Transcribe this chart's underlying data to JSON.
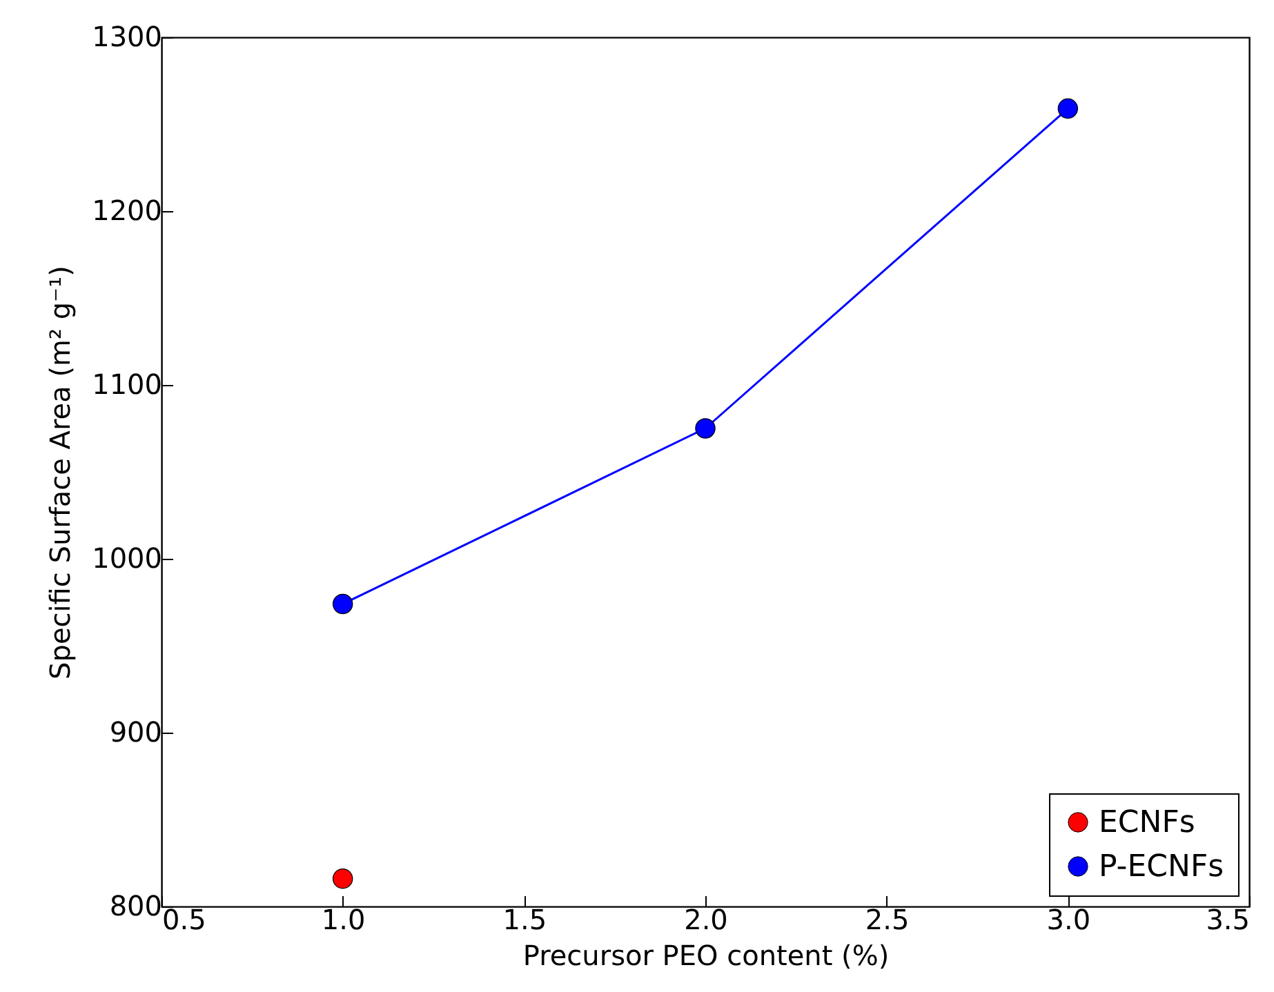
{
  "chart_data": {
    "type": "line",
    "xlabel": "Precursor PEO content (%)",
    "ylabel": "Specific Surface Area (m² g⁻¹)",
    "xlim": [
      0.5,
      3.5
    ],
    "xticks": [
      {
        "value": 0.5,
        "label": "0.5"
      },
      {
        "value": 1,
        "label": "1.0"
      },
      {
        "value": 1.5,
        "label": "1.5"
      },
      {
        "value": 2,
        "label": "2.0"
      },
      {
        "value": 2.5,
        "label": "2.5"
      },
      {
        "value": 3,
        "label": "3.0"
      },
      {
        "value": 3.5,
        "label": "3.5"
      }
    ],
    "ylim": [
      800,
      1300
    ],
    "yticks": [
      800,
      900,
      1000,
      1100,
      1200,
      1300
    ],
    "grid": false,
    "legend": "bottom right",
    "marker": "circle",
    "line_style": "solid",
    "series": [
      {
        "name": "ECNFs",
        "type": "scatter",
        "color": "#ff0000",
        "x": [
          1.0
        ],
        "values": [
          816
        ]
      },
      {
        "name": "P-ECNFs",
        "type": "line",
        "color": "#0000ff",
        "x": [
          1.0,
          2.0,
          3.0
        ],
        "values": [
          974,
          1075,
          1259
        ]
      }
    ]
  }
}
